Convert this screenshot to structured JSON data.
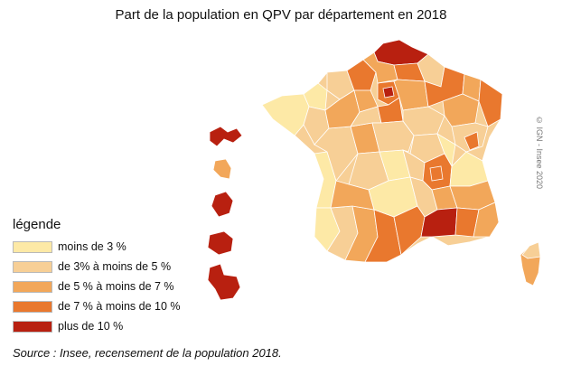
{
  "title": "Part de la population en QPV par département en 2018",
  "legend": {
    "title": "légende",
    "items": [
      {
        "label": "moins de 3 %",
        "color": "#fde9a6"
      },
      {
        "label": "de 3% à moins de 5 %",
        "color": "#f7cf96"
      },
      {
        "label": "de 5 % à moins de 7 %",
        "color": "#f2a75a"
      },
      {
        "label": "de 7 % à moins de 10 %",
        "color": "#e9782e"
      },
      {
        "label": "plus de 10 %",
        "color": "#b82010"
      }
    ]
  },
  "credit": "© IGN - Insee 2020",
  "source": "Source : Insee, recensement de la population 2018."
}
